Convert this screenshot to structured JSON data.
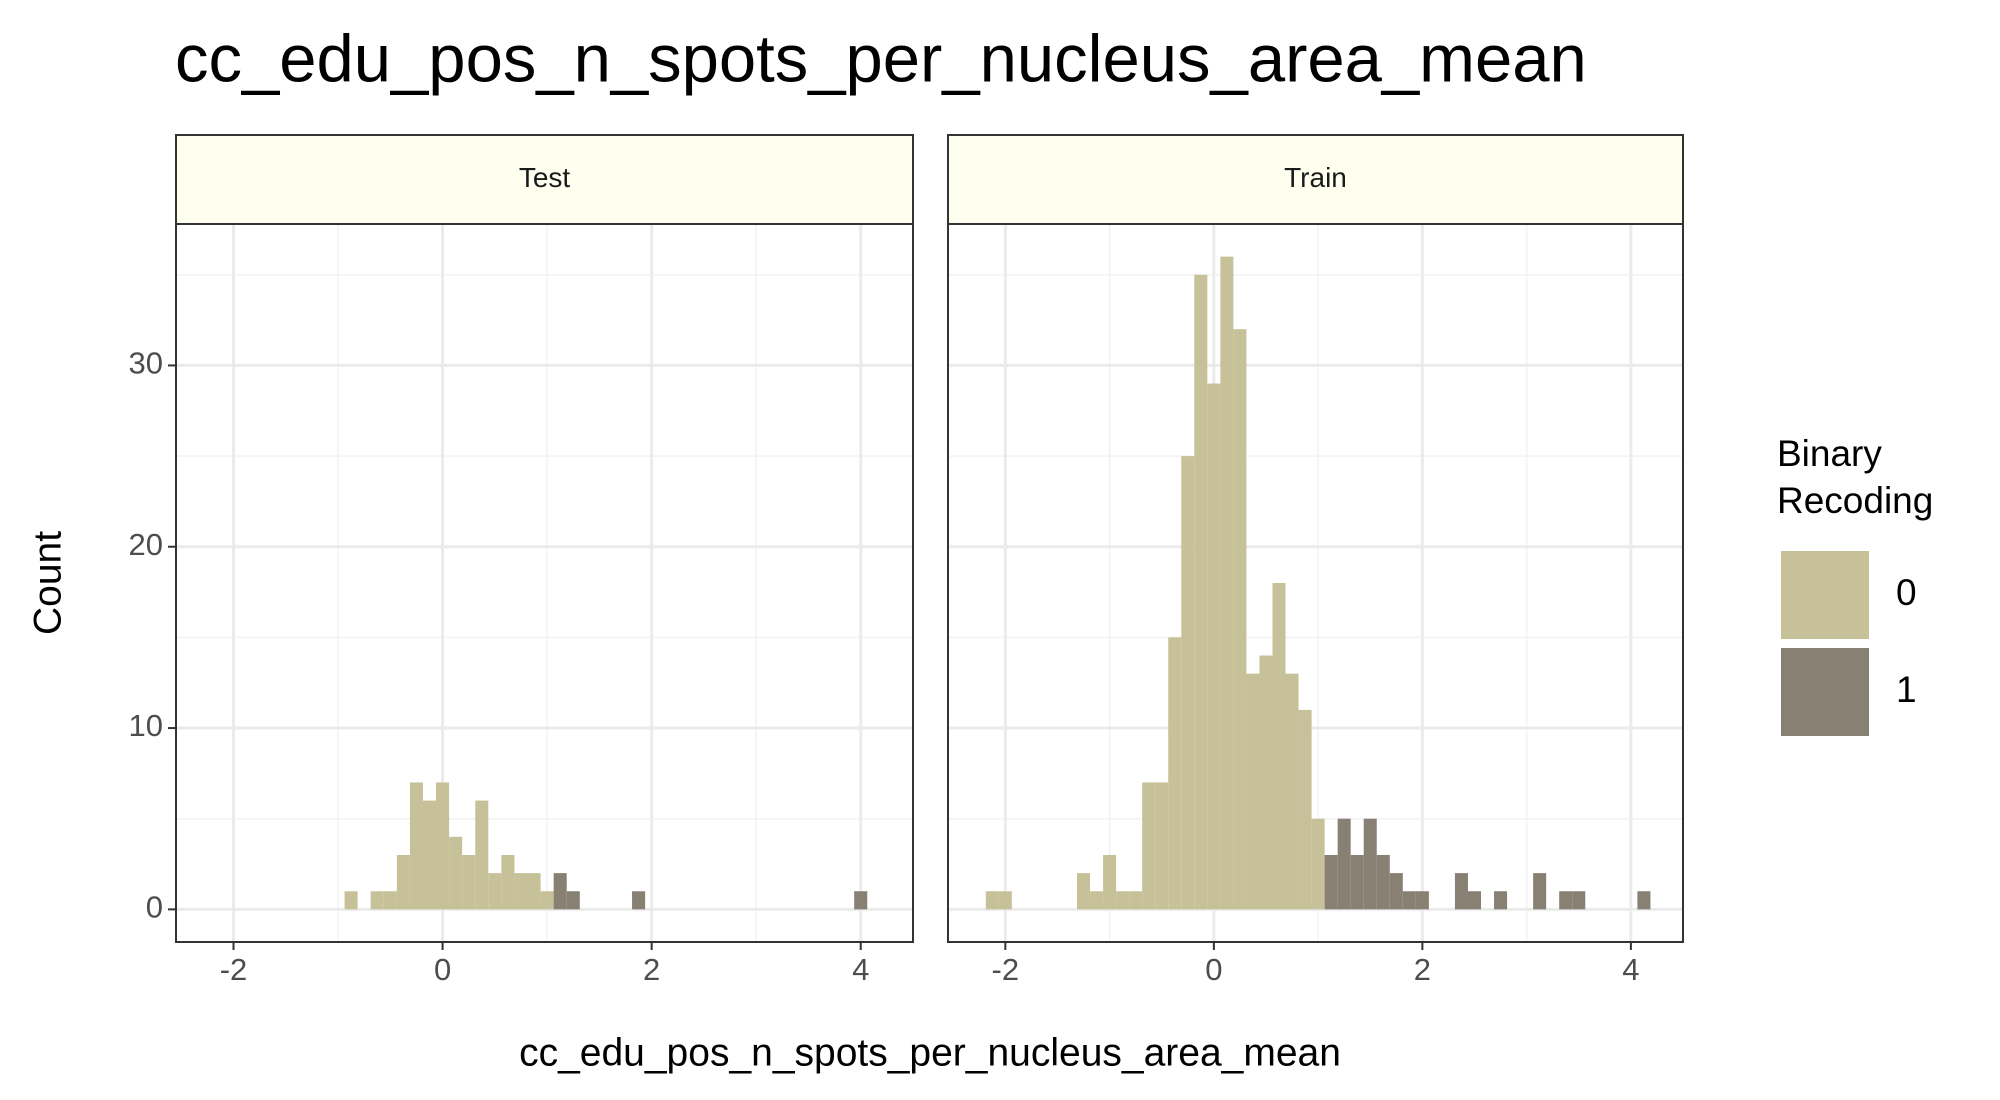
{
  "chart_data": {
    "type": "histogram",
    "title": "cc_edu_pos_n_spots_per_nucleus_area_mean",
    "xlabel": "cc_edu_pos_n_spots_per_nucleus_area_mean",
    "ylabel": "Count",
    "legend_title": "Binary Recoding",
    "xlim": [
      -2.55,
      4.5
    ],
    "ylim": [
      -1.8,
      37.8
    ],
    "xticks": [
      -2,
      0,
      2,
      4
    ],
    "yticks": [
      0,
      10,
      20,
      30
    ],
    "xminor": [
      -1,
      1,
      3
    ],
    "yminor": [
      5,
      15,
      25,
      35
    ],
    "grid": true,
    "stacked": true,
    "bins": [
      -2.3125,
      -2.1875,
      -2.0625,
      -1.9375,
      -1.8125,
      -1.6875,
      -1.5625,
      -1.4375,
      -1.3125,
      -1.1875,
      -1.0625,
      -0.9375,
      -0.8125,
      -0.6875,
      -0.5625,
      -0.4375,
      -0.3125,
      -0.1875,
      -0.0625,
      0.0625,
      0.1875,
      0.3125,
      0.4375,
      0.5625,
      0.6875,
      0.8125,
      0.9375,
      1.0625,
      1.1875,
      1.3125,
      1.4375,
      1.5625,
      1.6875,
      1.8125,
      1.9375,
      2.0625,
      2.1875,
      2.3125,
      2.4375,
      2.5625,
      2.6875,
      2.8125,
      2.9375,
      3.0625,
      3.1875,
      3.3125,
      3.4375,
      3.5625,
      3.6875,
      3.8125,
      3.9375,
      4.0625,
      4.1875,
      4.3125
    ],
    "panels": [
      {
        "title": "Test",
        "series": [
          {
            "name": "0",
            "color": "#c7c199",
            "values": [
              0,
              0,
              0,
              0,
              0,
              0,
              0,
              0,
              0,
              0,
              0,
              1,
              0,
              1,
              1,
              3,
              7,
              6,
              7,
              4,
              3,
              6,
              2,
              3,
              2,
              2,
              1,
              0,
              0,
              0,
              0,
              0,
              0,
              0,
              0,
              0,
              0,
              0,
              0,
              0,
              0,
              0,
              0,
              0,
              0,
              0,
              0,
              0,
              0,
              0,
              0,
              0,
              0
            ]
          },
          {
            "name": "1",
            "color": "#878073",
            "values": [
              0,
              0,
              0,
              0,
              0,
              0,
              0,
              0,
              0,
              0,
              0,
              0,
              0,
              0,
              0,
              0,
              0,
              0,
              0,
              0,
              0,
              0,
              0,
              0,
              0,
              0,
              0,
              2,
              1,
              0,
              0,
              0,
              0,
              1,
              0,
              0,
              0,
              0,
              0,
              0,
              0,
              0,
              0,
              0,
              0,
              0,
              0,
              0,
              0,
              0,
              1,
              0,
              0
            ]
          }
        ]
      },
      {
        "title": "Train",
        "series": [
          {
            "name": "0",
            "color": "#c7c199",
            "values": [
              0,
              1,
              1,
              0,
              0,
              0,
              0,
              0,
              2,
              1,
              3,
              1,
              1,
              7,
              7,
              15,
              25,
              35,
              29,
              36,
              32,
              13,
              14,
              18,
              13,
              11,
              5,
              0,
              0,
              0,
              0,
              0,
              0,
              0,
              0,
              0,
              0,
              0,
              0,
              0,
              0,
              0,
              0,
              0,
              0,
              0,
              0,
              0,
              0,
              0,
              0,
              0,
              0
            ]
          },
          {
            "name": "1",
            "color": "#878073",
            "values": [
              0,
              0,
              0,
              0,
              0,
              0,
              0,
              0,
              0,
              0,
              0,
              0,
              0,
              0,
              0,
              0,
              0,
              0,
              0,
              0,
              0,
              0,
              0,
              0,
              0,
              0,
              0,
              3,
              5,
              3,
              5,
              3,
              2,
              1,
              1,
              0,
              0,
              2,
              1,
              0,
              1,
              0,
              0,
              2,
              0,
              1,
              1,
              0,
              0,
              0,
              0,
              1,
              0
            ]
          }
        ]
      }
    ]
  }
}
